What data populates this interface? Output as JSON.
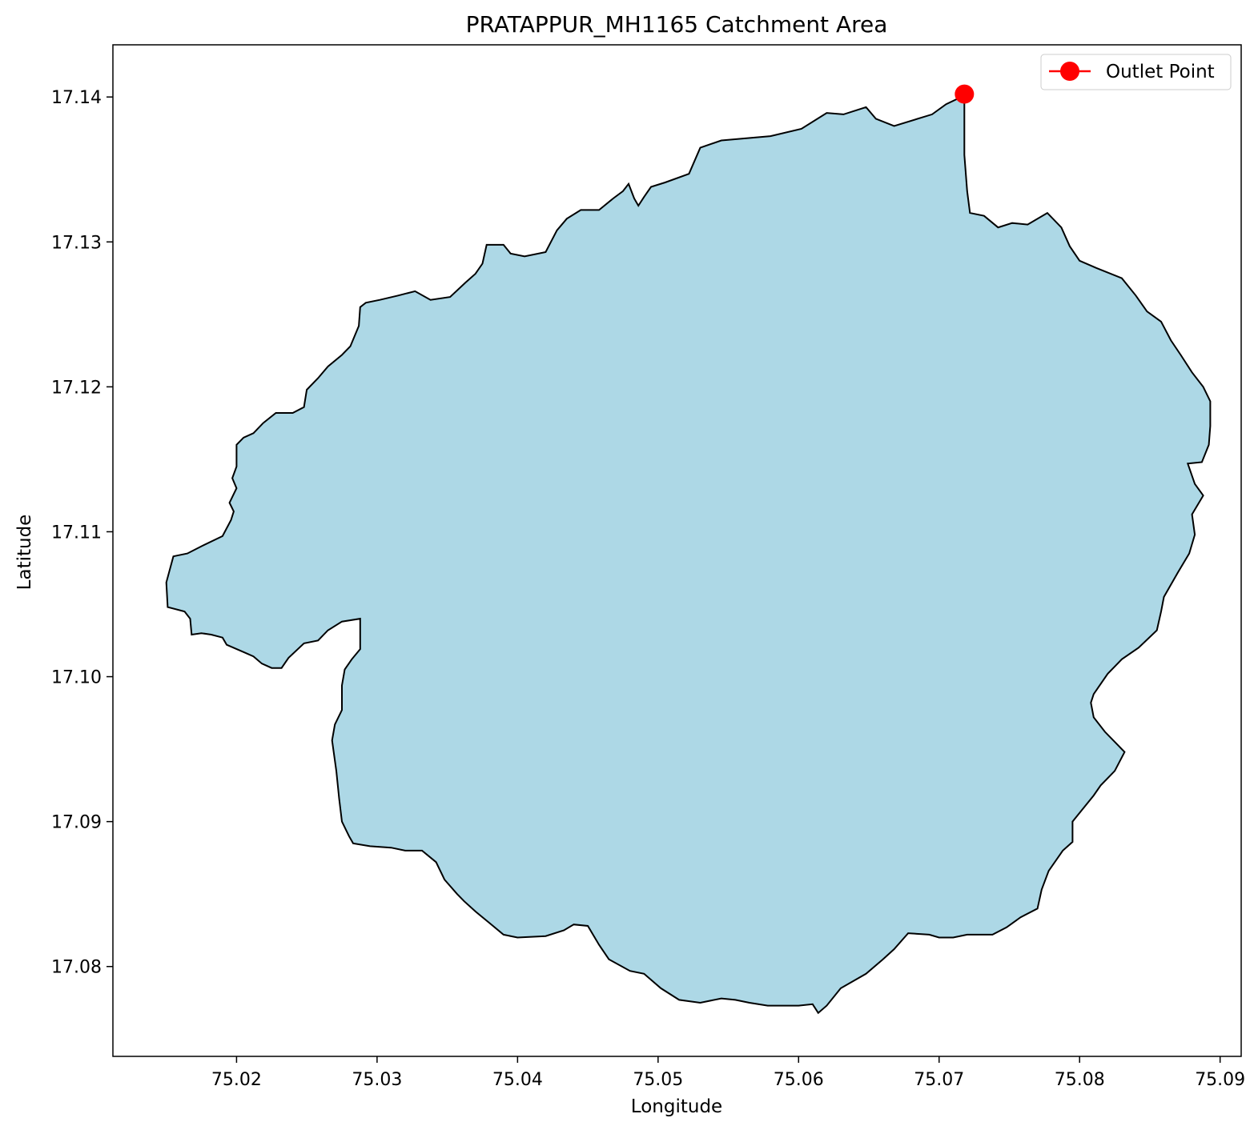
{
  "chart_data": {
    "type": "map",
    "title": "PRATAPPUR_MH1165 Catchment Area",
    "xlabel": "Longitude",
    "ylabel": "Latitude",
    "xlim": [
      75.0112,
      75.0915
    ],
    "ylim": [
      17.0738,
      17.1436
    ],
    "xticks": [
      75.02,
      75.03,
      75.04,
      75.05,
      75.06,
      75.07,
      75.08,
      75.09
    ],
    "xtick_labels": [
      "75.02",
      "75.03",
      "75.04",
      "75.05",
      "75.06",
      "75.07",
      "75.08",
      "75.09"
    ],
    "yticks": [
      17.08,
      17.09,
      17.1,
      17.11,
      17.12,
      17.13,
      17.14
    ],
    "ytick_labels": [
      "17.08",
      "17.09",
      "17.10",
      "17.11",
      "17.12",
      "17.13",
      "17.14"
    ],
    "grid": false,
    "legend": {
      "placement": "top-right",
      "entries": [
        {
          "label": "Outlet Point",
          "marker": "circle",
          "color": "#ff0000"
        }
      ]
    },
    "catchment": {
      "fill_color": "#add8e6",
      "edge_color": "#000000",
      "boundary": [
        [
          75.0718,
          17.1401
        ],
        [
          75.0705,
          17.1395
        ],
        [
          75.0695,
          17.1388
        ],
        [
          75.0668,
          17.138
        ],
        [
          75.0655,
          17.1385
        ],
        [
          75.0648,
          17.1393
        ],
        [
          75.0632,
          17.1388
        ],
        [
          75.062,
          17.1389
        ],
        [
          75.0602,
          17.1378
        ],
        [
          75.058,
          17.1373
        ],
        [
          75.0545,
          17.137
        ],
        [
          75.053,
          17.1365
        ],
        [
          75.0522,
          17.1347
        ],
        [
          75.0505,
          17.1341
        ],
        [
          75.0495,
          17.1338
        ],
        [
          75.049,
          17.1331
        ],
        [
          75.0486,
          17.1325
        ],
        [
          75.0483,
          17.133
        ],
        [
          75.0479,
          17.134
        ],
        [
          75.0475,
          17.1335
        ],
        [
          75.0468,
          17.133
        ],
        [
          75.0458,
          17.1322
        ],
        [
          75.0445,
          17.1322
        ],
        [
          75.0435,
          17.1316
        ],
        [
          75.0428,
          17.1308
        ],
        [
          75.042,
          17.1293
        ],
        [
          75.0405,
          17.129
        ],
        [
          75.0395,
          17.1292
        ],
        [
          75.039,
          17.1298
        ],
        [
          75.0378,
          17.1298
        ],
        [
          75.0375,
          17.1285
        ],
        [
          75.037,
          17.1278
        ],
        [
          75.0363,
          17.1272
        ],
        [
          75.0352,
          17.1262
        ],
        [
          75.0338,
          17.126
        ],
        [
          75.0327,
          17.1266
        ],
        [
          75.0315,
          17.1263
        ],
        [
          75.0302,
          17.126
        ],
        [
          75.0292,
          17.1258
        ],
        [
          75.0288,
          17.1255
        ],
        [
          75.0287,
          17.1242
        ],
        [
          75.0281,
          17.1228
        ],
        [
          75.0275,
          17.1222
        ],
        [
          75.0265,
          17.1214
        ],
        [
          75.0258,
          17.1206
        ],
        [
          75.025,
          17.1198
        ],
        [
          75.0248,
          17.1186
        ],
        [
          75.024,
          17.1182
        ],
        [
          75.0228,
          17.1182
        ],
        [
          75.0219,
          17.1175
        ],
        [
          75.0212,
          17.1168
        ],
        [
          75.0205,
          17.1165
        ],
        [
          75.02,
          17.116
        ],
        [
          75.02,
          17.1145
        ],
        [
          75.0197,
          17.1137
        ],
        [
          75.02,
          17.113
        ],
        [
          75.0195,
          17.112
        ],
        [
          75.0198,
          17.1114
        ],
        [
          75.0196,
          17.1108
        ],
        [
          75.019,
          17.1097
        ],
        [
          75.0175,
          17.109
        ],
        [
          75.0165,
          17.1085
        ],
        [
          75.0155,
          17.1083
        ],
        [
          75.015,
          17.1065
        ],
        [
          75.0151,
          17.1048
        ],
        [
          75.0163,
          17.1045
        ],
        [
          75.0167,
          17.104
        ],
        [
          75.0168,
          17.1029
        ],
        [
          75.0175,
          17.103
        ],
        [
          75.0182,
          17.1029
        ],
        [
          75.019,
          17.1027
        ],
        [
          75.0193,
          17.1022
        ],
        [
          75.0205,
          17.1017
        ],
        [
          75.0212,
          17.1014
        ],
        [
          75.0218,
          17.1009
        ],
        [
          75.0225,
          17.1006
        ],
        [
          75.0232,
          17.1006
        ],
        [
          75.0237,
          17.1013
        ],
        [
          75.0248,
          17.1023
        ],
        [
          75.0258,
          17.1025
        ],
        [
          75.0265,
          17.1032
        ],
        [
          75.0275,
          17.1038
        ],
        [
          75.0288,
          17.104
        ],
        [
          75.0288,
          17.1019
        ],
        [
          75.0282,
          17.1012
        ],
        [
          75.0277,
          17.1005
        ],
        [
          75.0275,
          17.0994
        ],
        [
          75.0275,
          17.0977
        ],
        [
          75.027,
          17.0967
        ],
        [
          75.0268,
          17.0956
        ],
        [
          75.0271,
          17.0935
        ],
        [
          75.0273,
          17.0916
        ],
        [
          75.0275,
          17.09
        ],
        [
          75.028,
          17.089
        ],
        [
          75.0283,
          17.0885
        ],
        [
          75.0295,
          17.0883
        ],
        [
          75.031,
          17.0882
        ],
        [
          75.032,
          17.088
        ],
        [
          75.0332,
          17.088
        ],
        [
          75.0342,
          17.0872
        ],
        [
          75.0348,
          17.086
        ],
        [
          75.0357,
          17.085
        ],
        [
          75.0362,
          17.0845
        ],
        [
          75.037,
          17.0838
        ],
        [
          75.038,
          17.083
        ],
        [
          75.039,
          17.0822
        ],
        [
          75.04,
          17.082
        ],
        [
          75.042,
          17.0821
        ],
        [
          75.0433,
          17.0825
        ],
        [
          75.044,
          17.0829
        ],
        [
          75.045,
          17.0828
        ],
        [
          75.0458,
          17.0815
        ],
        [
          75.0465,
          17.0805
        ],
        [
          75.048,
          17.0797
        ],
        [
          75.049,
          17.0795
        ],
        [
          75.0502,
          17.0785
        ],
        [
          75.0515,
          17.0777
        ],
        [
          75.053,
          17.0775
        ],
        [
          75.0545,
          17.0778
        ],
        [
          75.0555,
          17.0777
        ],
        [
          75.0565,
          17.0775
        ],
        [
          75.0578,
          17.0773
        ],
        [
          75.06,
          17.0773
        ],
        [
          75.061,
          17.0774
        ],
        [
          75.0614,
          17.0768
        ],
        [
          75.062,
          17.0773
        ],
        [
          75.063,
          17.0785
        ],
        [
          75.0648,
          17.0795
        ],
        [
          75.066,
          17.0805
        ],
        [
          75.0668,
          17.0812
        ],
        [
          75.0678,
          17.0823
        ],
        [
          75.0693,
          17.0822
        ],
        [
          75.07,
          17.082
        ],
        [
          75.071,
          17.082
        ],
        [
          75.072,
          17.0822
        ],
        [
          75.0738,
          17.0822
        ],
        [
          75.0748,
          17.0827
        ],
        [
          75.0758,
          17.0834
        ],
        [
          75.077,
          17.084
        ],
        [
          75.0773,
          17.0853
        ],
        [
          75.0778,
          17.0866
        ],
        [
          75.0788,
          17.088
        ],
        [
          75.0795,
          17.0886
        ],
        [
          75.0795,
          17.09
        ],
        [
          75.081,
          17.0918
        ],
        [
          75.0815,
          17.0925
        ],
        [
          75.0825,
          17.0935
        ],
        [
          75.0832,
          17.0948
        ],
        [
          75.0818,
          17.0962
        ],
        [
          75.081,
          17.0972
        ],
        [
          75.0808,
          17.0982
        ],
        [
          75.081,
          17.0988
        ],
        [
          75.082,
          17.1002
        ],
        [
          75.083,
          17.1012
        ],
        [
          75.0842,
          17.102
        ],
        [
          75.0855,
          17.1032
        ],
        [
          75.0858,
          17.1045
        ],
        [
          75.086,
          17.1055
        ],
        [
          75.087,
          17.1072
        ],
        [
          75.0878,
          17.1085
        ],
        [
          75.0882,
          17.1098
        ],
        [
          75.088,
          17.1112
        ],
        [
          75.0888,
          17.1125
        ],
        [
          75.0882,
          17.1133
        ],
        [
          75.0877,
          17.1147
        ],
        [
          75.0887,
          17.1148
        ],
        [
          75.0892,
          17.116
        ],
        [
          75.0893,
          17.1173
        ],
        [
          75.0893,
          17.119
        ],
        [
          75.0888,
          17.12
        ],
        [
          75.088,
          17.121
        ],
        [
          75.0872,
          17.1222
        ],
        [
          75.0865,
          17.1232
        ],
        [
          75.0858,
          17.1245
        ],
        [
          75.0848,
          17.1252
        ],
        [
          75.084,
          17.1263
        ],
        [
          75.083,
          17.1275
        ],
        [
          75.0812,
          17.1282
        ],
        [
          75.08,
          17.1287
        ],
        [
          75.0793,
          17.1297
        ],
        [
          75.0787,
          17.131
        ],
        [
          75.0777,
          17.132
        ],
        [
          75.0763,
          17.1312
        ],
        [
          75.0752,
          17.1313
        ],
        [
          75.0742,
          17.131
        ],
        [
          75.0732,
          17.1318
        ],
        [
          75.0722,
          17.132
        ],
        [
          75.072,
          17.1335
        ],
        [
          75.0718,
          17.136
        ],
        [
          75.0718,
          17.1401
        ]
      ]
    },
    "outlet_point": {
      "label": "Outlet Point",
      "lon": 75.0718,
      "lat": 17.1402,
      "color": "#ff0000"
    }
  }
}
